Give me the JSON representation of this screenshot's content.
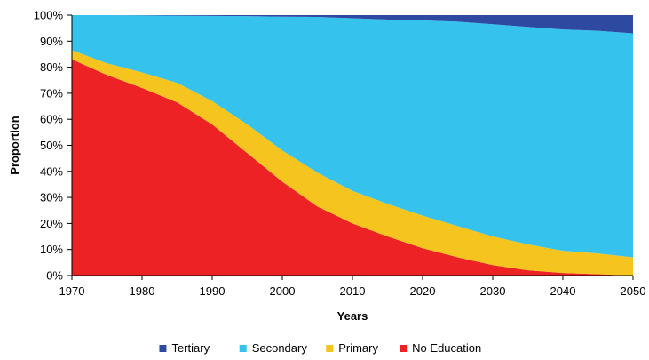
{
  "chart_data": {
    "type": "area",
    "stacked": true,
    "title": "",
    "xlabel": "Years",
    "ylabel": "Proportion",
    "x": [
      1970,
      1975,
      1980,
      1985,
      1990,
      1995,
      2000,
      2005,
      2010,
      2015,
      2020,
      2025,
      2030,
      2035,
      2040,
      2045,
      2050
    ],
    "xlim": [
      1970,
      2050
    ],
    "ylim": [
      0,
      100
    ],
    "x_ticks": [
      "1970",
      "1980",
      "1990",
      "2000",
      "2010",
      "2020",
      "2030",
      "2040",
      "2050"
    ],
    "y_ticks": [
      "0%",
      "10%",
      "20%",
      "30%",
      "40%",
      "50%",
      "60%",
      "70%",
      "80%",
      "90%",
      "100%"
    ],
    "grid": false,
    "legend_position": "bottom",
    "series": [
      {
        "name": "No Education",
        "color": "#ed2224",
        "values": [
          83,
          77,
          72,
          66.5,
          58,
          47,
          36,
          26.5,
          20,
          15,
          10.5,
          7,
          4,
          2,
          1,
          0.5,
          0
        ]
      },
      {
        "name": "Primary",
        "color": "#f5c41e",
        "values": [
          3.5,
          4.5,
          6,
          7.5,
          9,
          11,
          12,
          13,
          12.5,
          12.5,
          12.5,
          12,
          11,
          10,
          8.5,
          8,
          7
        ]
      },
      {
        "name": "Secondary",
        "color": "#35c3ee",
        "values": [
          13.5,
          18.5,
          21.9,
          25.8,
          32.7,
          41.6,
          51.4,
          59.8,
          66.3,
          70.8,
          75,
          78.5,
          81.5,
          83.5,
          85,
          85.5,
          86
        ]
      },
      {
        "name": "Tertiary",
        "color": "#2e4aa0",
        "values": [
          0,
          0,
          0.1,
          0.2,
          0.3,
          0.4,
          0.6,
          0.7,
          1.2,
          1.7,
          2.0,
          2.5,
          3.5,
          4.5,
          5.5,
          6.0,
          7.0
        ]
      }
    ],
    "legend_order": [
      "Tertiary",
      "Secondary",
      "Primary",
      "No Education"
    ]
  }
}
